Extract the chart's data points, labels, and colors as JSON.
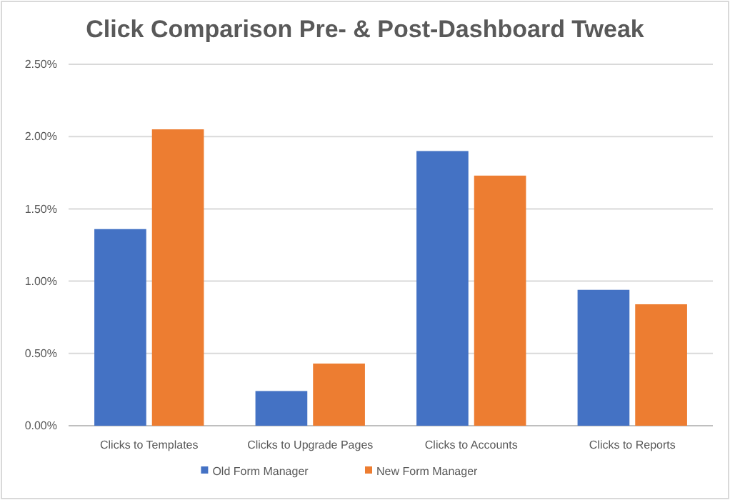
{
  "chart_data": {
    "type": "bar",
    "title": "Click Comparison Pre- & Post-Dashboard Tweak",
    "categories": [
      "Clicks to Templates",
      "Clicks to Upgrade Pages",
      "Clicks to Accounts",
      "Clicks to Reports"
    ],
    "series": [
      {
        "name": "Old Form Manager",
        "color": "#4472c4",
        "values": [
          1.36,
          0.24,
          1.9,
          0.94
        ]
      },
      {
        "name": "New Form Manager",
        "color": "#ed7d31",
        "values": [
          2.05,
          0.43,
          1.73,
          0.84
        ]
      }
    ],
    "ylim": [
      0,
      2.5
    ],
    "yticks": [
      {
        "value": 0,
        "label": "0.00%"
      },
      {
        "value": 0.5,
        "label": "0.50%"
      },
      {
        "value": 1,
        "label": "1.00%"
      },
      {
        "value": 1.5,
        "label": "1.50%"
      },
      {
        "value": 2,
        "label": "2.00%"
      },
      {
        "value": 2.5,
        "label": "2.50%"
      }
    ],
    "grid": true,
    "legend": "bottom"
  }
}
